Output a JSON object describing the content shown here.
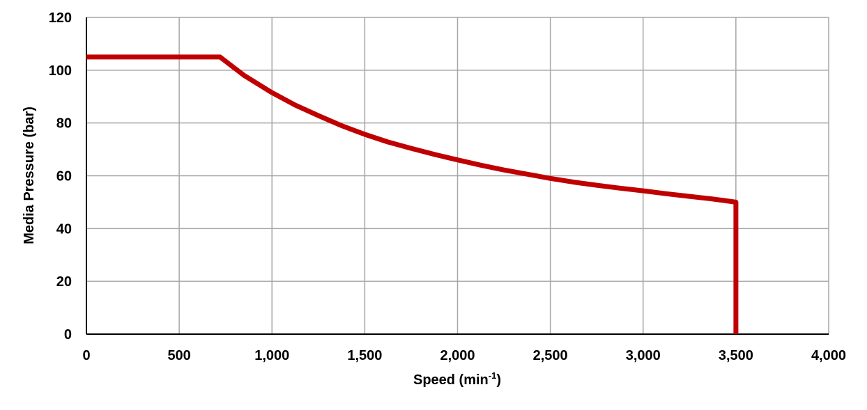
{
  "chart_data": {
    "type": "line",
    "title": "",
    "xlabel": "Speed (min",
    "xlabel_superscript": "-1",
    "xlabel_suffix": ")",
    "ylabel": "Media Pressure (bar)",
    "xlim": [
      0,
      4000
    ],
    "ylim": [
      0,
      120
    ],
    "grid": true,
    "x_ticks": [
      "0",
      "500",
      "1,000",
      "1,500",
      "2,000",
      "2,500",
      "3,000",
      "3,500",
      "4,000"
    ],
    "y_ticks": [
      "0",
      "20",
      "40",
      "60",
      "80",
      "100",
      "120"
    ],
    "series": [
      {
        "color": "#c00000",
        "points": [
          [
            0,
            105
          ],
          [
            720,
            105
          ],
          [
            850,
            98
          ],
          [
            1000,
            91.5
          ],
          [
            1125,
            86.8
          ],
          [
            1250,
            82.8
          ],
          [
            1375,
            79
          ],
          [
            1500,
            75.7
          ],
          [
            1625,
            72.8
          ],
          [
            1750,
            70.4
          ],
          [
            1875,
            68.1
          ],
          [
            2000,
            66
          ],
          [
            2125,
            64
          ],
          [
            2250,
            62.2
          ],
          [
            2375,
            60.6
          ],
          [
            2500,
            59
          ],
          [
            2625,
            57.6
          ],
          [
            2750,
            56.4
          ],
          [
            2875,
            55.3
          ],
          [
            3000,
            54.3
          ],
          [
            3125,
            53.2
          ],
          [
            3250,
            52.2
          ],
          [
            3375,
            51.2
          ],
          [
            3500,
            50
          ],
          [
            3500,
            0
          ]
        ]
      }
    ]
  }
}
